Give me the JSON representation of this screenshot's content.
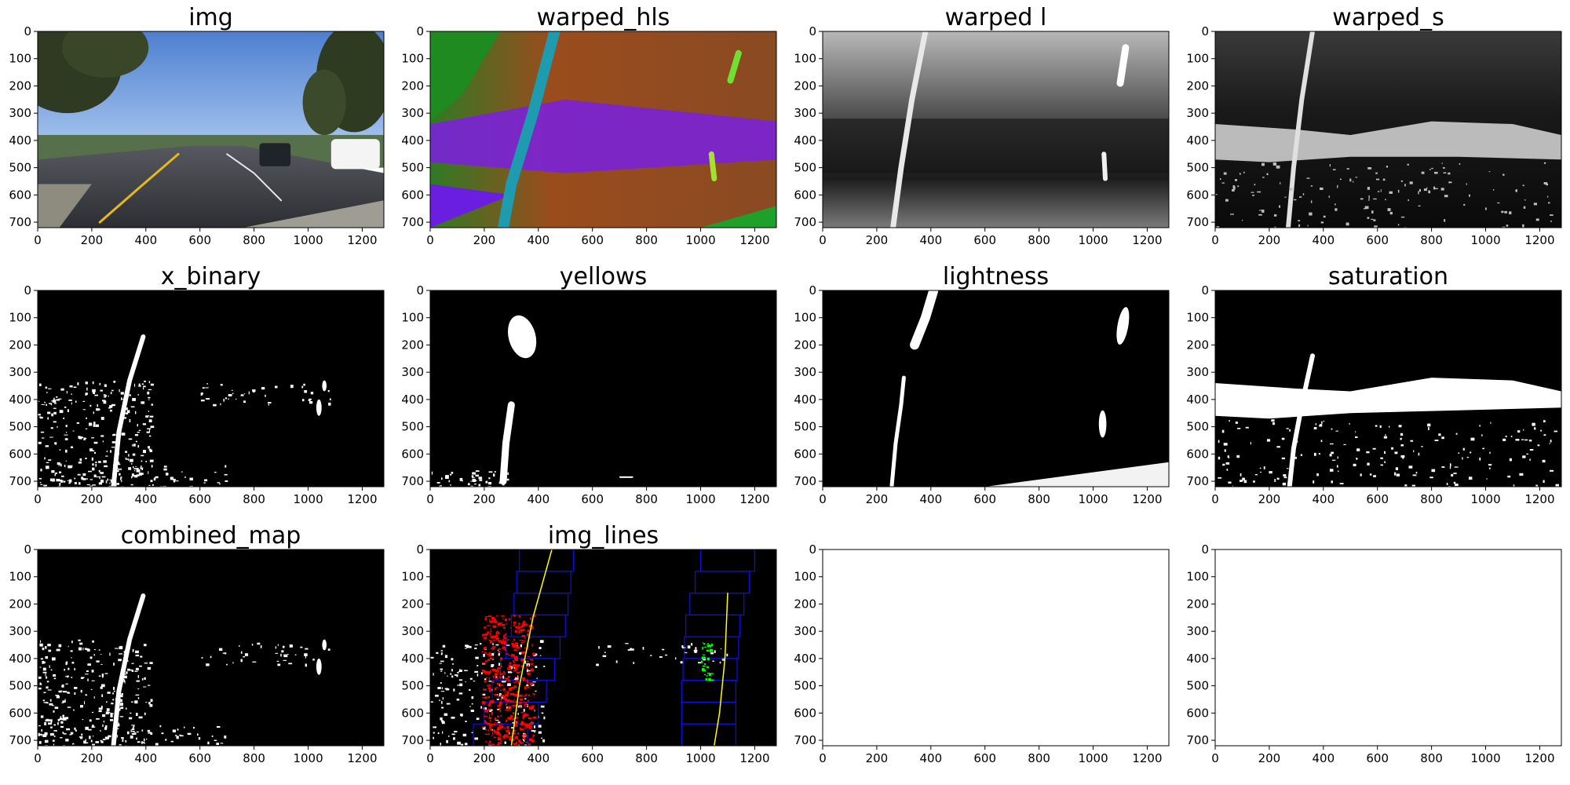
{
  "figure": {
    "layout": "3 rows x 4 columns image grid"
  },
  "chart_data": [
    {
      "type": "image",
      "title": "img",
      "content": "road-camera-photo",
      "xlim": [
        0,
        1280
      ],
      "ylim": [
        720,
        0
      ],
      "xticks": [
        0,
        200,
        400,
        600,
        800,
        1000,
        1200
      ],
      "yticks": [
        0,
        100,
        200,
        300,
        400,
        500,
        600,
        700
      ]
    },
    {
      "type": "image",
      "title": "warped_hls",
      "content": "warped-hls-colormap",
      "xlim": [
        0,
        1280
      ],
      "ylim": [
        720,
        0
      ],
      "xticks": [
        0,
        200,
        400,
        600,
        800,
        1000,
        1200
      ],
      "yticks": [
        0,
        100,
        200,
        300,
        400,
        500,
        600,
        700
      ]
    },
    {
      "type": "image",
      "title": "warped l",
      "content": "warped-lightness-grayscale",
      "xlim": [
        0,
        1280
      ],
      "ylim": [
        720,
        0
      ],
      "xticks": [
        0,
        200,
        400,
        600,
        800,
        1000,
        1200
      ],
      "yticks": [
        0,
        100,
        200,
        300,
        400,
        500,
        600,
        700
      ]
    },
    {
      "type": "image",
      "title": "warped_s",
      "content": "warped-saturation-grayscale",
      "xlim": [
        0,
        1280
      ],
      "ylim": [
        720,
        0
      ],
      "xticks": [
        0,
        200,
        400,
        600,
        800,
        1000,
        1200
      ],
      "yticks": [
        0,
        100,
        200,
        300,
        400,
        500,
        600,
        700
      ]
    },
    {
      "type": "image",
      "title": "x_binary",
      "content": "binary-mask",
      "xlim": [
        0,
        1280
      ],
      "ylim": [
        720,
        0
      ],
      "xticks": [
        0,
        200,
        400,
        600,
        800,
        1000,
        1200
      ],
      "yticks": [
        0,
        100,
        200,
        300,
        400,
        500,
        600,
        700
      ]
    },
    {
      "type": "image",
      "title": "yellows",
      "content": "binary-mask",
      "xlim": [
        0,
        1280
      ],
      "ylim": [
        720,
        0
      ],
      "xticks": [
        0,
        200,
        400,
        600,
        800,
        1000,
        1200
      ],
      "yticks": [
        0,
        100,
        200,
        300,
        400,
        500,
        600,
        700
      ]
    },
    {
      "type": "image",
      "title": "lightness",
      "content": "binary-mask",
      "xlim": [
        0,
        1280
      ],
      "ylim": [
        720,
        0
      ],
      "xticks": [
        0,
        200,
        400,
        600,
        800,
        1000,
        1200
      ],
      "yticks": [
        0,
        100,
        200,
        300,
        400,
        500,
        600,
        700
      ]
    },
    {
      "type": "image",
      "title": "saturation",
      "content": "binary-mask",
      "xlim": [
        0,
        1280
      ],
      "ylim": [
        720,
        0
      ],
      "xticks": [
        0,
        200,
        400,
        600,
        800,
        1000,
        1200
      ],
      "yticks": [
        0,
        100,
        200,
        300,
        400,
        500,
        600,
        700
      ]
    },
    {
      "type": "image",
      "title": "combined_map",
      "content": "binary-mask",
      "xlim": [
        0,
        1280
      ],
      "ylim": [
        720,
        0
      ],
      "xticks": [
        0,
        200,
        400,
        600,
        800,
        1000,
        1200
      ],
      "yticks": [
        0,
        100,
        200,
        300,
        400,
        500,
        600,
        700
      ]
    },
    {
      "type": "image",
      "title": "img_lines",
      "content": "sliding-window-lane-detection",
      "xlim": [
        0,
        1280
      ],
      "ylim": [
        720,
        0
      ],
      "xticks": [
        0,
        200,
        400,
        600,
        800,
        1000,
        1200
      ],
      "yticks": [
        0,
        100,
        200,
        300,
        400,
        500,
        600,
        700
      ]
    },
    {
      "type": "empty",
      "title": "",
      "content": "blank",
      "xlim": [
        0,
        1280
      ],
      "ylim": [
        720,
        0
      ],
      "xticks": [
        0,
        200,
        400,
        600,
        800,
        1000,
        1200
      ],
      "yticks": [
        0,
        100,
        200,
        300,
        400,
        500,
        600,
        700
      ]
    },
    {
      "type": "empty",
      "title": "",
      "content": "blank",
      "xlim": [
        0,
        1280
      ],
      "ylim": [
        720,
        0
      ],
      "xticks": [
        0,
        200,
        400,
        600,
        800,
        1000,
        1200
      ],
      "yticks": [
        0,
        100,
        200,
        300,
        400,
        500,
        600,
        700
      ]
    }
  ],
  "sliding_windows": {
    "left_lane_centers_x": [
      260,
      300,
      330,
      360,
      380,
      400,
      410,
      420,
      430
    ],
    "right_lane_centers_x": [
      1030,
      1030,
      1030,
      1035,
      1040,
      1045,
      1060,
      1080,
      1100
    ],
    "window_color": "#1010e0",
    "left_pixels_color": "#ff0000",
    "right_pixels_color": "#00ff00",
    "fit_line_color": "#ffff00"
  },
  "colors": {
    "background": "#ffffff",
    "axis": "#000000",
    "mask_background": "#000000",
    "mask_foreground": "#ffffff"
  }
}
